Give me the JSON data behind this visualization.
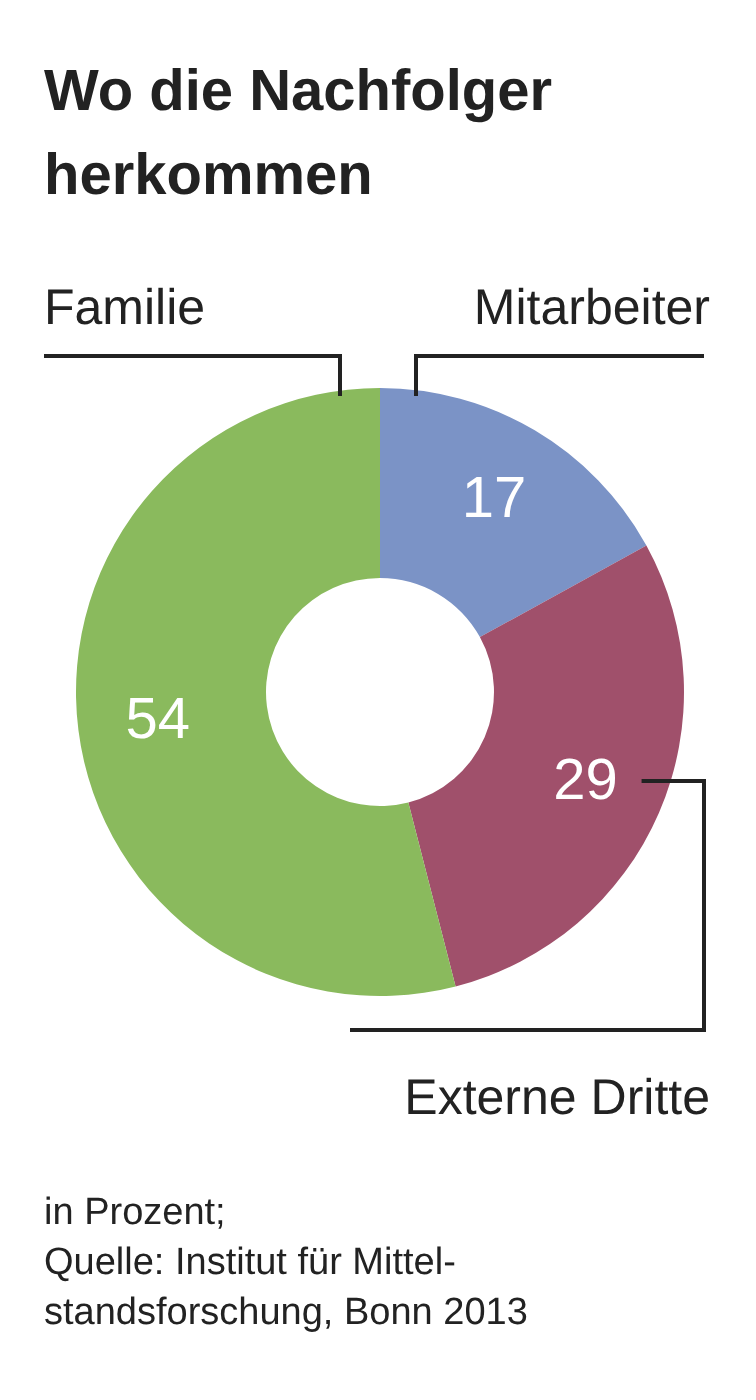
{
  "chart_data": {
    "type": "donut",
    "title": "Wo die Nachfolger herkommen",
    "categories": [
      "Mitarbeiter",
      "Externe Dritte",
      "Familie"
    ],
    "values": [
      17,
      29,
      54
    ],
    "colors": [
      "#7b93c6",
      "#a0506b",
      "#8aba5d"
    ],
    "data_labels": true,
    "annotations": [
      "in Prozent;",
      "Quelle: Institut für Mittel-\nstandsforschung, Bonn 2013"
    ]
  }
}
